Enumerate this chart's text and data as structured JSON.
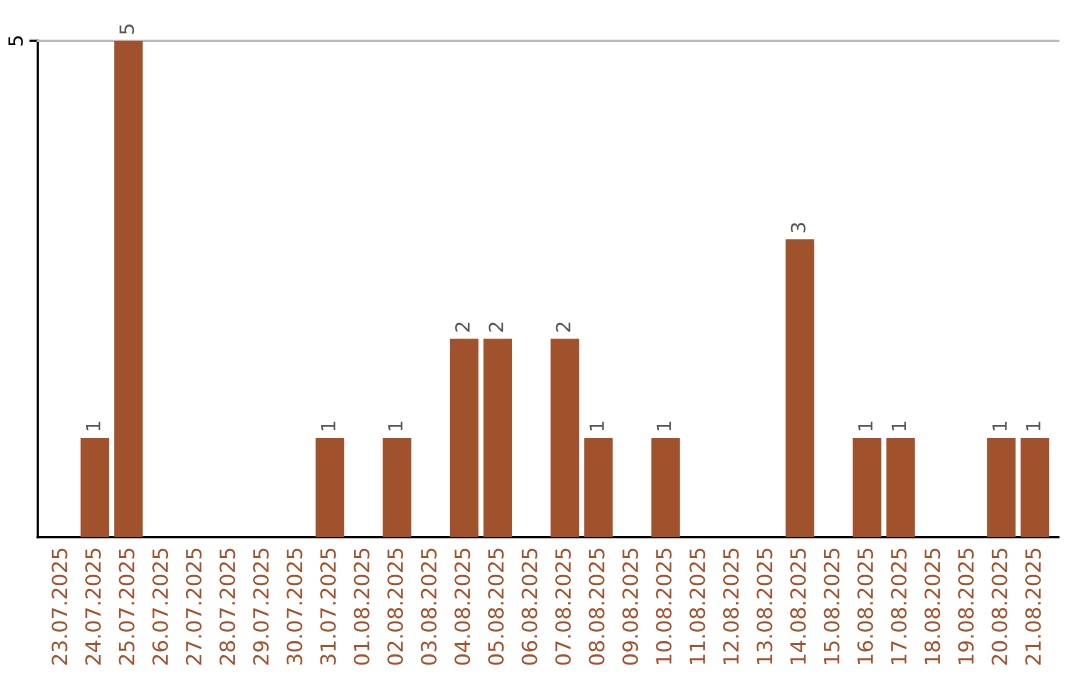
{
  "chart_data": {
    "type": "bar",
    "categories": [
      "23.07.2025",
      "24.07.2025",
      "25.07.2025",
      "26.07.2025",
      "27.07.2025",
      "28.07.2025",
      "29.07.2025",
      "30.07.2025",
      "31.07.2025",
      "01.08.2025",
      "02.08.2025",
      "03.08.2025",
      "04.08.2025",
      "05.08.2025",
      "06.08.2025",
      "07.08.2025",
      "08.08.2025",
      "09.08.2025",
      "10.08.2025",
      "11.08.2025",
      "12.08.2025",
      "13.08.2025",
      "14.08.2025",
      "15.08.2025",
      "16.08.2025",
      "17.08.2025",
      "18.08.2025",
      "19.08.2025",
      "20.08.2025",
      "21.08.2025"
    ],
    "values": [
      0,
      1,
      5,
      0,
      0,
      0,
      0,
      0,
      1,
      0,
      1,
      0,
      2,
      2,
      0,
      2,
      1,
      0,
      1,
      0,
      0,
      0,
      3,
      0,
      1,
      1,
      0,
      0,
      1,
      1
    ],
    "value_labels": [
      null,
      "1",
      "5",
      null,
      null,
      null,
      null,
      null,
      "1",
      null,
      "1",
      null,
      "2",
      "2",
      null,
      "2",
      "1",
      null,
      "1",
      null,
      null,
      null,
      "3",
      null,
      "1",
      "1",
      null,
      null,
      "1",
      "1"
    ],
    "color": "#a0522d",
    "ylim": [
      0,
      5
    ],
    "yticks": [
      5
    ]
  }
}
